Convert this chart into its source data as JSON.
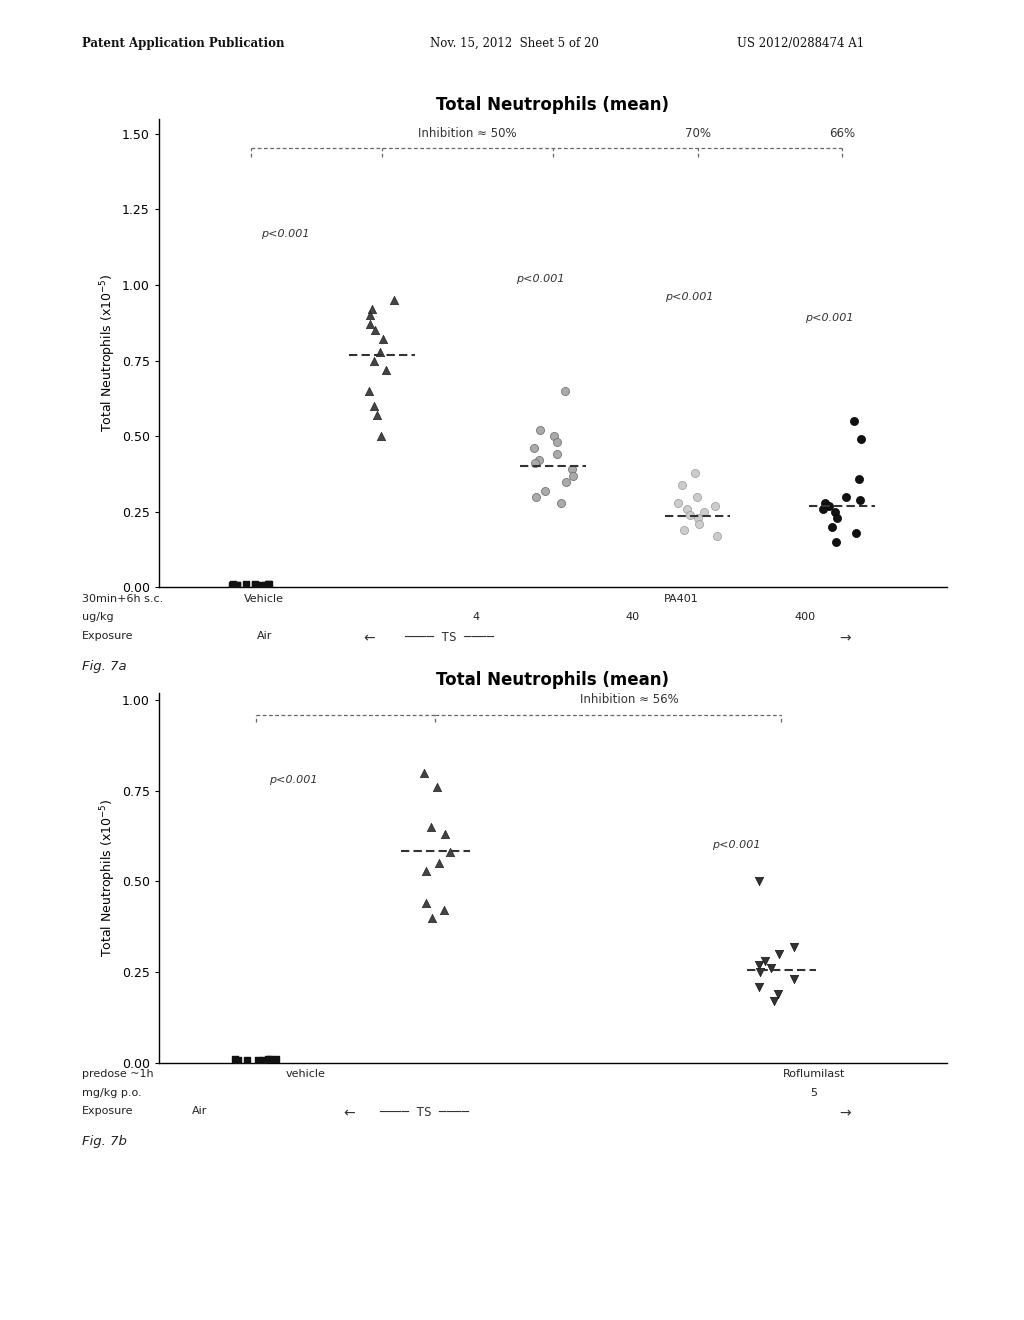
{
  "page_header_left": "Patent Application Publication",
  "page_header_mid": "Nov. 15, 2012  Sheet 5 of 20",
  "page_header_right": "US 2012/0288474 A1",
  "fig7a": {
    "title": "Total Neutrophils (mean)",
    "ylabel": "Total Neutrophils (x10⁻⁵)",
    "ylim": [
      0,
      1.55
    ],
    "yticks": [
      0.0,
      0.25,
      0.5,
      0.75,
      1.0,
      1.25,
      1.5
    ],
    "ytick_labels": [
      "0.00",
      "0.25",
      "0.50",
      "0.75",
      "1.00",
      "1.25",
      "1.50"
    ],
    "inhibition_labels": [
      "Inhibition ≈ 50%",
      "70%",
      "66%"
    ],
    "p_values": [
      "p<0.001",
      "p<0.001",
      "p<0.001",
      "p<0.001"
    ],
    "means": [
      0.0,
      0.77,
      0.4,
      0.235,
      0.27
    ],
    "air_points": [
      0.012,
      0.01,
      0.008,
      0.01,
      0.007,
      0.009,
      0.01,
      0.008,
      0.009,
      0.006,
      0.007,
      0.01
    ],
    "vehicle_ts_points": [
      0.95,
      0.92,
      0.9,
      0.87,
      0.85,
      0.82,
      0.78,
      0.75,
      0.72,
      0.65,
      0.6,
      0.57,
      0.5
    ],
    "pa401_4_points": [
      0.65,
      0.52,
      0.5,
      0.48,
      0.46,
      0.44,
      0.42,
      0.41,
      0.39,
      0.37,
      0.35,
      0.32,
      0.3,
      0.28
    ],
    "pa401_40_points": [
      0.38,
      0.34,
      0.3,
      0.28,
      0.27,
      0.26,
      0.25,
      0.24,
      0.23,
      0.21,
      0.19,
      0.17
    ],
    "pa401_400_points": [
      0.55,
      0.49,
      0.36,
      0.3,
      0.29,
      0.28,
      0.27,
      0.26,
      0.25,
      0.23,
      0.2,
      0.18,
      0.15
    ]
  },
  "fig7b": {
    "title": "Total Neutrophils (mean)",
    "ylabel": "Total Neutrophils (x10⁻⁵)",
    "ylim": [
      0,
      1.02
    ],
    "yticks": [
      0.0,
      0.25,
      0.5,
      0.75,
      1.0
    ],
    "ytick_labels": [
      "0.00",
      "0.25",
      "0.50",
      "0.75",
      "1.00"
    ],
    "inhibition_label": "Inhibition ≈ 56%",
    "p_values": [
      "p<0.001",
      "p<0.001"
    ],
    "means_vehicle_ts": 0.585,
    "means_roflumilast": 0.255,
    "air_points": [
      0.01,
      0.008,
      0.01,
      0.007,
      0.009,
      0.01,
      0.008,
      0.006
    ],
    "vehicle_ts_points": [
      0.8,
      0.76,
      0.65,
      0.63,
      0.58,
      0.55,
      0.53,
      0.44,
      0.42,
      0.4
    ],
    "roflumilast_points": [
      0.5,
      0.32,
      0.3,
      0.28,
      0.27,
      0.26,
      0.25,
      0.23,
      0.21,
      0.19,
      0.17
    ]
  },
  "background_color": "#ffffff",
  "text_color": "#000000"
}
